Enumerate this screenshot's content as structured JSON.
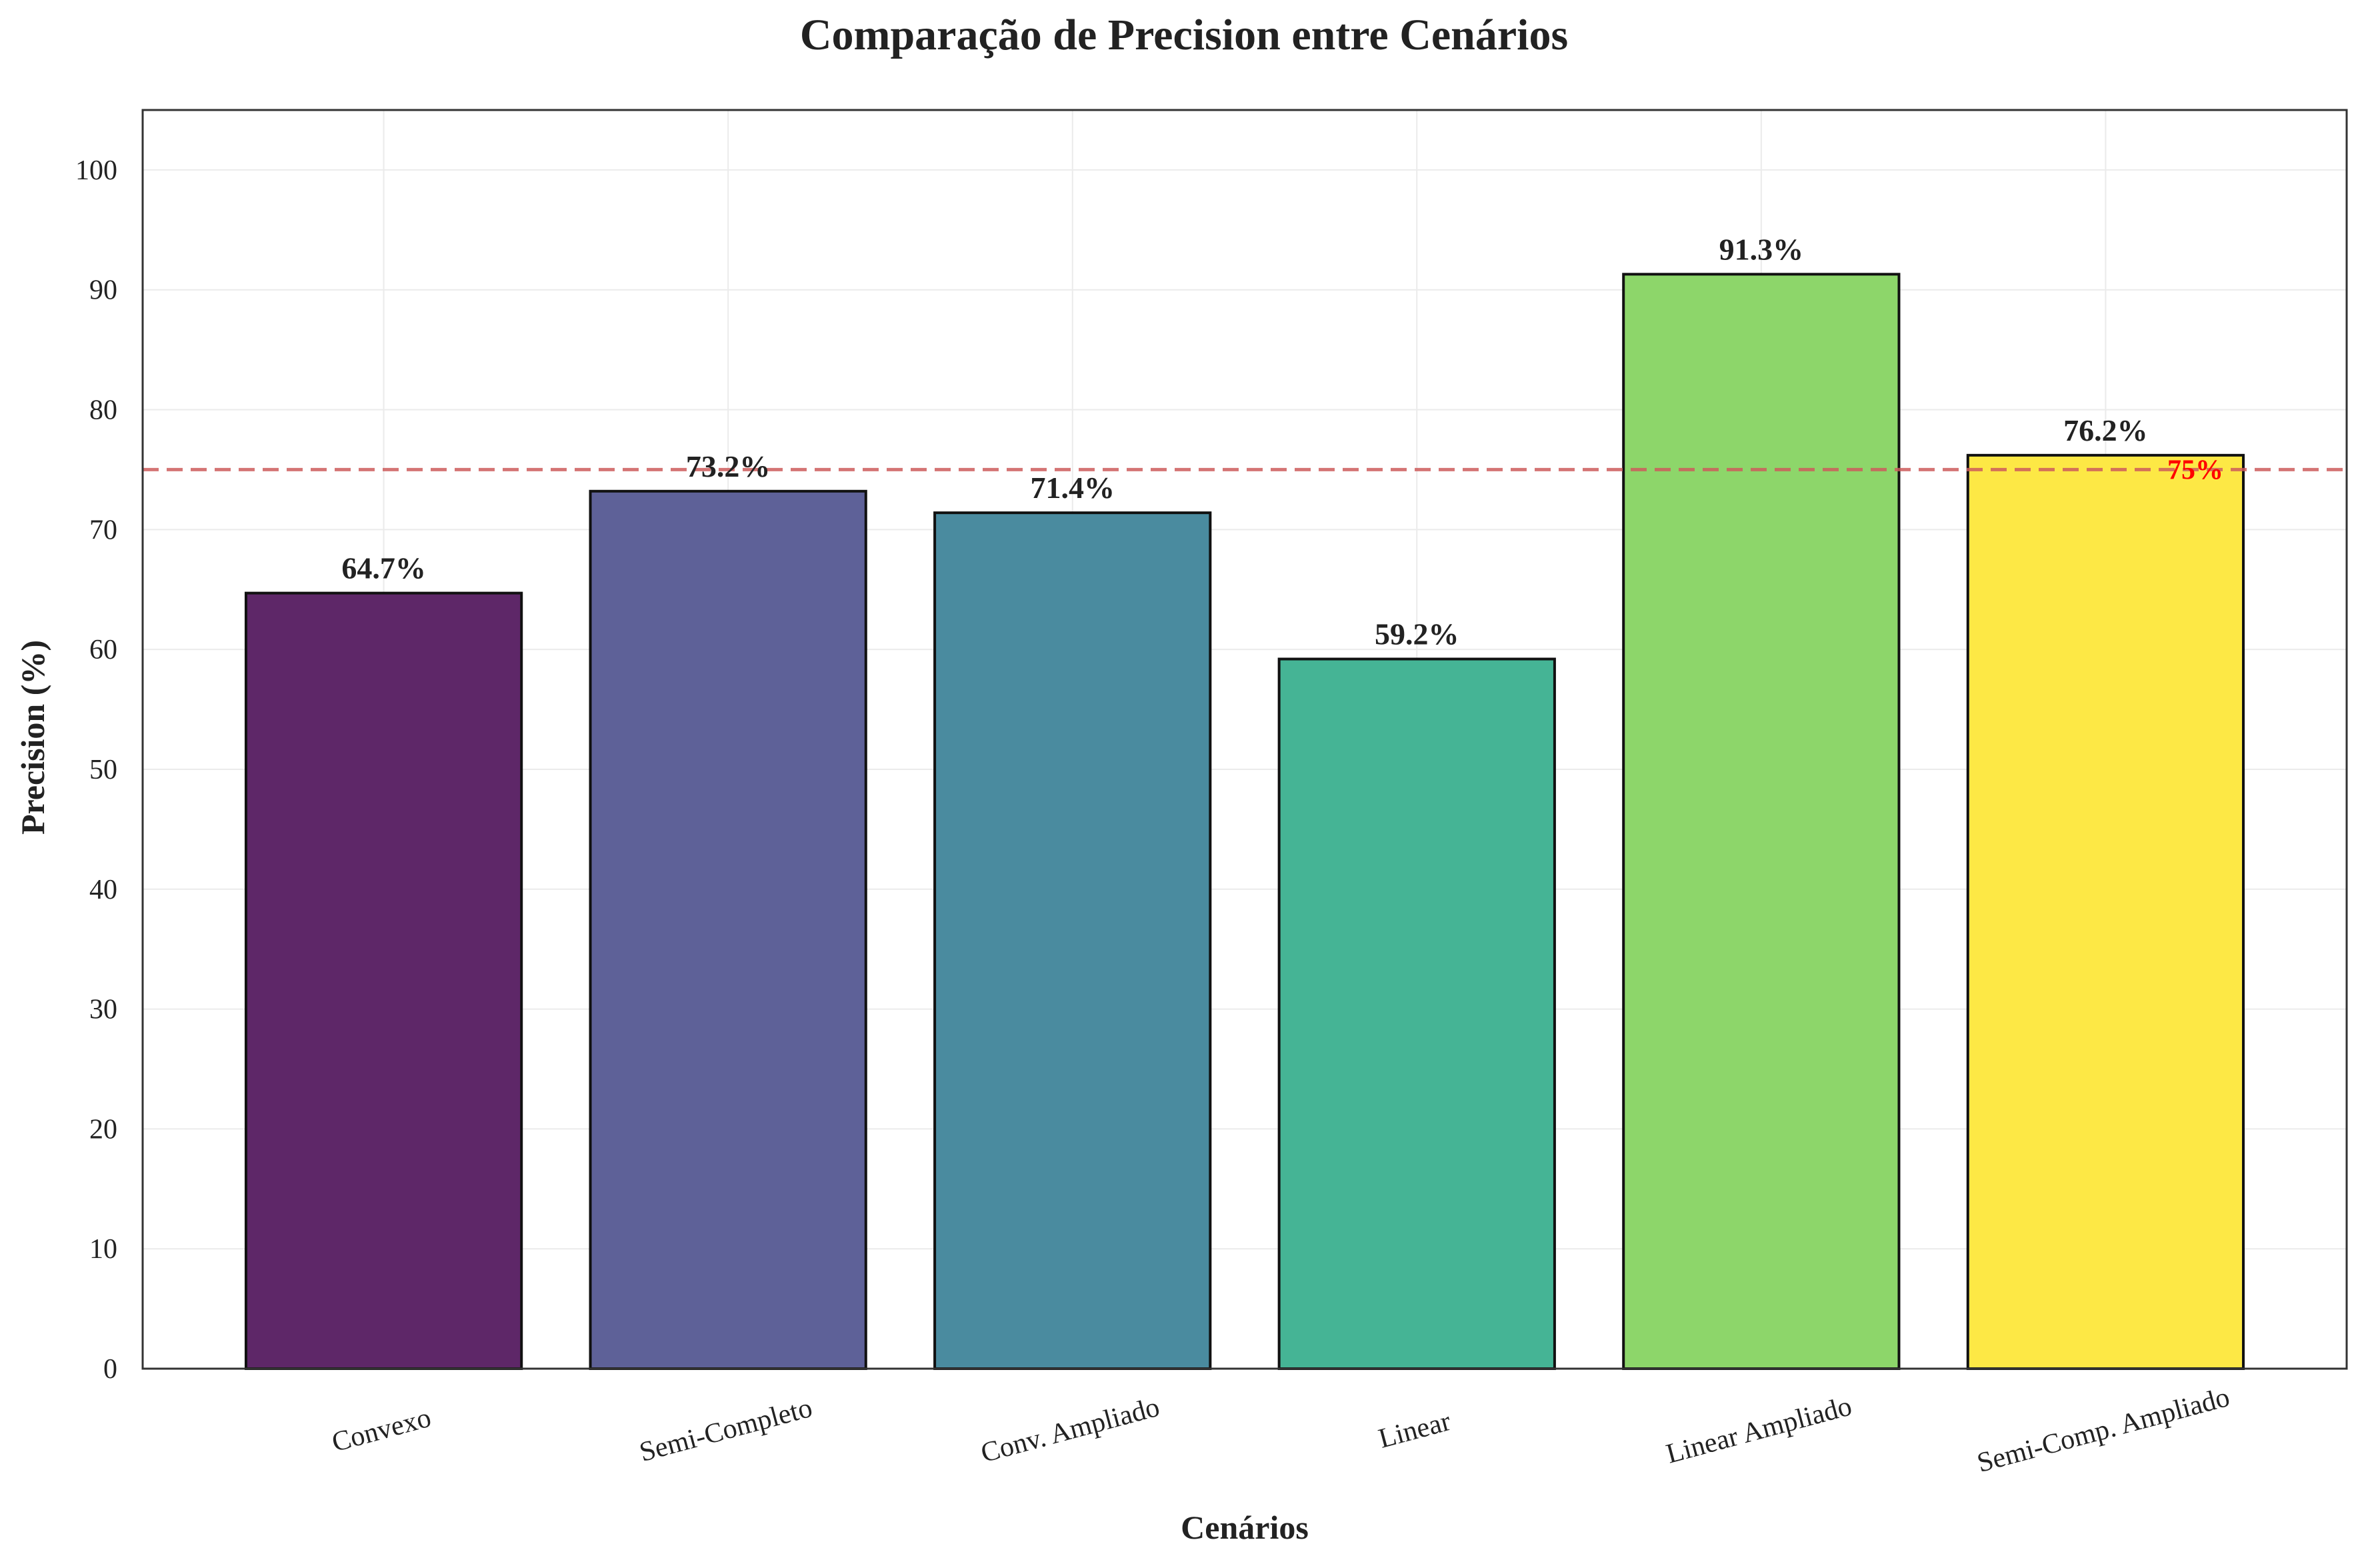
{
  "chart_data": {
    "type": "bar",
    "title": "Comparação de Precision entre Cenários",
    "xlabel": "Cenários",
    "ylabel": "Precision (%)",
    "categories": [
      "Convexo",
      "Semi-Completo",
      "Conv. Ampliado",
      "Linear",
      "Linear Ampliado",
      "Semi-Comp. Ampliado"
    ],
    "values": [
      64.7,
      73.2,
      71.4,
      59.2,
      91.3,
      76.2
    ],
    "value_labels": [
      "64.7%",
      "73.2%",
      "71.4%",
      "59.2%",
      "91.3%",
      "76.2%"
    ],
    "bar_colors": [
      "#5e2768",
      "#5e6198",
      "#4a8b9f",
      "#45b495",
      "#8dd66a",
      "#fde845"
    ],
    "ylim": [
      0,
      105
    ],
    "yticks": [
      0,
      10,
      20,
      30,
      40,
      50,
      60,
      70,
      80,
      90,
      100
    ],
    "ytick_labels": [
      "0",
      "10",
      "20",
      "30",
      "40",
      "50",
      "60",
      "70",
      "80",
      "90",
      "100"
    ],
    "grid": true,
    "reference_line": {
      "value": 75,
      "label": "75%",
      "color": "#cd5c5c",
      "label_color": "#ff0000",
      "style": "dashed"
    }
  }
}
